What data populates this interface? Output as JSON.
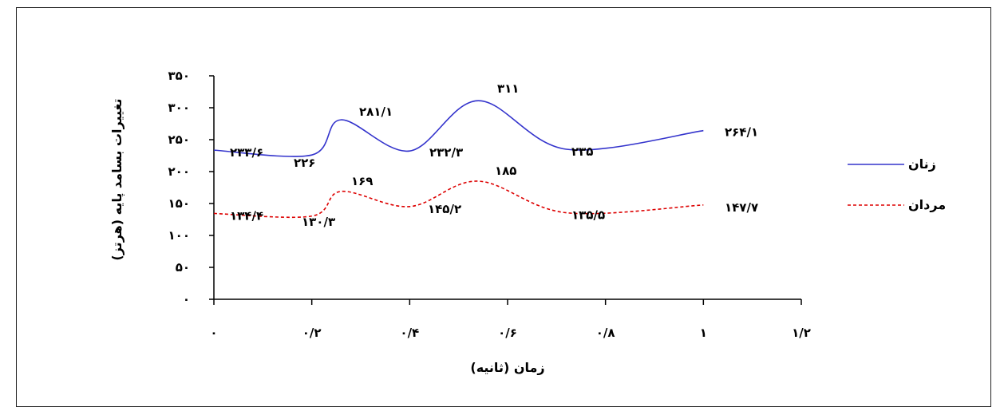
{
  "chart_data": {
    "type": "line",
    "xlabel": "زمان (ثانیه)",
    "ylabel": "تغییرات بسامد پایه (هرتز)",
    "xlim": [
      0,
      1.2
    ],
    "ylim": [
      0,
      350
    ],
    "x_ticks": [
      {
        "value": 0,
        "label": "۰"
      },
      {
        "value": 0.2,
        "label": "۰/۲"
      },
      {
        "value": 0.4,
        "label": "۰/۴"
      },
      {
        "value": 0.6,
        "label": "۰/۶"
      },
      {
        "value": 0.8,
        "label": "۰/۸"
      },
      {
        "value": 1.0,
        "label": "۱"
      },
      {
        "value": 1.2,
        "label": "۱/۲"
      }
    ],
    "y_ticks": [
      {
        "value": 0,
        "label": "۰"
      },
      {
        "value": 50,
        "label": "۵۰"
      },
      {
        "value": 100,
        "label": "۱۰۰"
      },
      {
        "value": 150,
        "label": "۱۵۰"
      },
      {
        "value": 200,
        "label": "۲۰۰"
      },
      {
        "value": 250,
        "label": "۲۵۰"
      },
      {
        "value": 300,
        "label": "۳۰۰"
      },
      {
        "value": 350,
        "label": "۳۵۰"
      }
    ],
    "grid": false,
    "legend_position": "right",
    "series": [
      {
        "name": "زنان",
        "color": "#3333cc",
        "style": "solid",
        "x": [
          0,
          0.2,
          0.26,
          0.4,
          0.54,
          0.72,
          1.0
        ],
        "y": [
          233.6,
          226,
          281.1,
          232.3,
          311,
          235,
          264.1
        ],
        "labels": [
          "۲۳۳/۶",
          "۲۲۶",
          "۲۸۱/۱",
          "۲۳۲/۳",
          "۳۱۱",
          "۲۳۵",
          "۲۶۴/۱"
        ]
      },
      {
        "name": "مردان",
        "color": "#dd0000",
        "style": "dashed",
        "x": [
          0,
          0.2,
          0.26,
          0.4,
          0.54,
          0.72,
          1.0
        ],
        "y": [
          134.4,
          130.3,
          169,
          145.2,
          185,
          135.5,
          147.7
        ],
        "labels": [
          "۱۳۴/۴",
          "۱۳۰/۳",
          "۱۶۹",
          "۱۴۵/۲",
          "۱۸۵",
          "۱۳۵/۵",
          "۱۴۷/۷"
        ]
      }
    ]
  }
}
